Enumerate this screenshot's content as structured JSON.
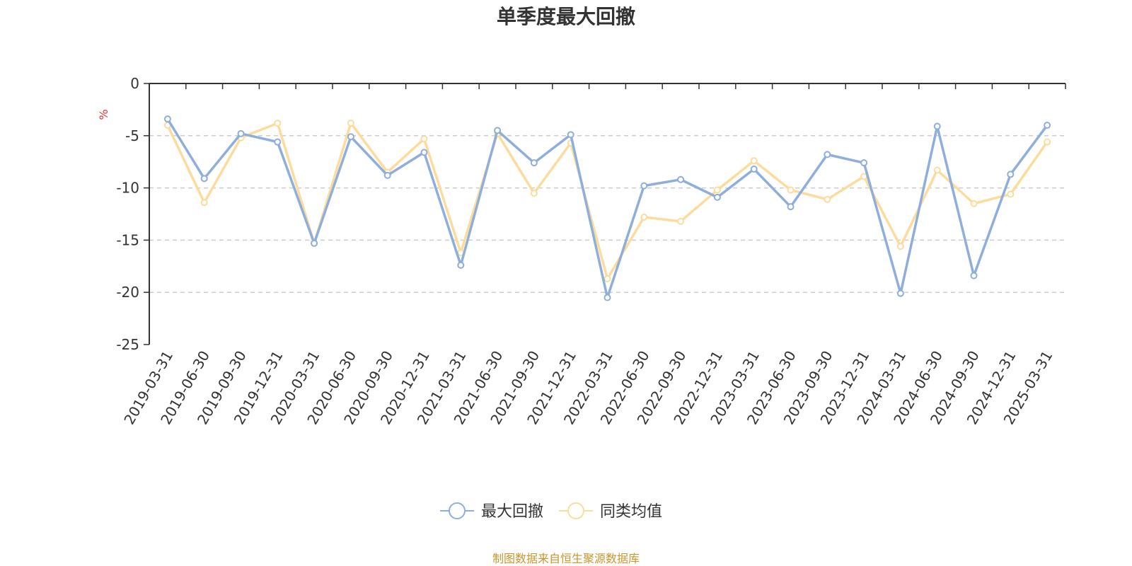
{
  "chart_data": {
    "type": "line",
    "title": "单季度最大回撤",
    "ylabel": "%",
    "xlabel": "",
    "ylim": [
      -25,
      0
    ],
    "yticks": [
      0,
      -5,
      -10,
      -15,
      -20,
      -25
    ],
    "grid": true,
    "legend_position": "bottom",
    "categories": [
      "2019-03-31",
      "2019-06-30",
      "2019-09-30",
      "2019-12-31",
      "2020-03-31",
      "2020-06-30",
      "2020-09-30",
      "2020-12-31",
      "2021-03-31",
      "2021-06-30",
      "2021-09-30",
      "2021-12-31",
      "2022-03-31",
      "2022-06-30",
      "2022-09-30",
      "2022-12-31",
      "2023-03-31",
      "2023-06-30",
      "2023-09-30",
      "2023-12-31",
      "2024-03-31",
      "2024-06-30",
      "2024-09-30",
      "2024-12-31",
      "2025-03-31"
    ],
    "series": [
      {
        "name": "最大回撤",
        "color": "#8eaedb",
        "values": [
          -3.4,
          -9.1,
          -4.8,
          -5.6,
          -15.3,
          -5.1,
          -8.8,
          -6.6,
          -17.4,
          -4.5,
          -7.6,
          -4.9,
          -20.5,
          -9.8,
          -9.2,
          -10.9,
          -8.2,
          -11.8,
          -6.8,
          -7.6,
          -20.1,
          -4.1,
          -18.4,
          -8.7,
          -4.0
        ]
      },
      {
        "name": "同类均值",
        "color": "#fcdc9c",
        "values": [
          -4.0,
          -11.4,
          -5.2,
          -3.8,
          -15.3,
          -3.8,
          -8.5,
          -5.3,
          -16.2,
          -4.8,
          -10.5,
          -5.7,
          -18.7,
          -12.8,
          -13.2,
          -10.2,
          -7.4,
          -10.2,
          -11.1,
          -8.9,
          -15.6,
          -8.3,
          -11.5,
          -10.6,
          -5.6
        ]
      }
    ]
  },
  "source_text": "制图数据来自恒生聚源数据库",
  "colors": {
    "axis": "#333333",
    "grid": "#cccccc",
    "unit": "#e8312f",
    "source": "#c8962e"
  }
}
